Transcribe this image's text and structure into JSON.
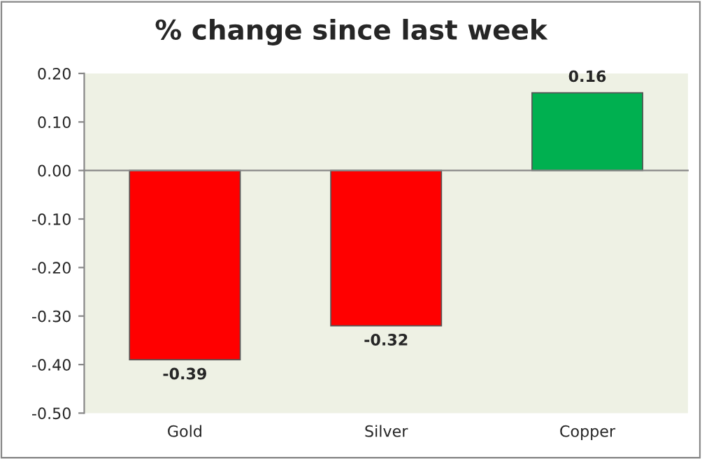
{
  "chart_data": {
    "type": "bar",
    "title": "% change since last week",
    "categories": [
      "Gold",
      "Silver",
      "Copper"
    ],
    "values": [
      -0.39,
      -0.32,
      0.16
    ],
    "colors": [
      "#ff0000",
      "#ff0000",
      "#00b050"
    ],
    "ylim": [
      -0.5,
      0.2
    ],
    "yticks": [
      {
        "value": -0.5,
        "label": "-0.50"
      },
      {
        "value": -0.4,
        "label": "-0.40"
      },
      {
        "value": -0.3,
        "label": "-0.30"
      },
      {
        "value": -0.2,
        "label": "-0.20"
      },
      {
        "value": -0.1,
        "label": "-0.10"
      },
      {
        "value": 0,
        "label": "0.00"
      },
      {
        "value": 0.1,
        "label": "0.10"
      },
      {
        "value": 0.2,
        "label": "0.20"
      }
    ],
    "data_labels": true
  }
}
